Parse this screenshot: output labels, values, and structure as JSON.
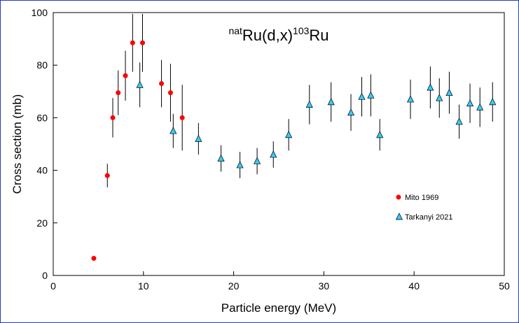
{
  "chart_data": {
    "type": "scatter",
    "title_parts": {
      "pre_sup": "nat",
      "main": "Ru(d,x)",
      "mid_sup": "103",
      "tail": "Ru"
    },
    "xlabel": "Particle energy (MeV)",
    "ylabel": "Cross section (mb)",
    "xlim": [
      0,
      50
    ],
    "ylim": [
      0,
      100
    ],
    "xticks": [
      0,
      10,
      20,
      30,
      40,
      50
    ],
    "yticks": [
      0,
      20,
      40,
      60,
      80,
      100
    ],
    "grid": false,
    "legend_position": "right-middle",
    "series": [
      {
        "name": "Mito 1969",
        "marker": "circle",
        "color": "#ff0000",
        "points": [
          {
            "x": 4.5,
            "y": 6.5,
            "err": 0
          },
          {
            "x": 6.0,
            "y": 38.0,
            "err": 4.5
          },
          {
            "x": 6.6,
            "y": 60.0,
            "err": 7.5
          },
          {
            "x": 7.2,
            "y": 69.5,
            "err": 8.5
          },
          {
            "x": 8.0,
            "y": 76.0,
            "err": 9.5
          },
          {
            "x": 8.8,
            "y": 88.5,
            "err": 11.0
          },
          {
            "x": 9.9,
            "y": 88.5,
            "err": 11.0
          },
          {
            "x": 12.0,
            "y": 73.0,
            "err": 9.0
          },
          {
            "x": 13.0,
            "y": 69.5,
            "err": 11.0
          },
          {
            "x": 14.3,
            "y": 60.0,
            "err": 12.5
          }
        ]
      },
      {
        "name": "Tarkanyi 2021",
        "marker": "triangle",
        "color": "#33ccff",
        "points": [
          {
            "x": 9.6,
            "y": 72.5,
            "err": 8.5
          },
          {
            "x": 13.3,
            "y": 55.0,
            "err": 6.5
          },
          {
            "x": 16.1,
            "y": 52.0,
            "err": 6.0
          },
          {
            "x": 18.6,
            "y": 44.5,
            "err": 5.0
          },
          {
            "x": 20.7,
            "y": 42.0,
            "err": 5.0
          },
          {
            "x": 22.6,
            "y": 43.5,
            "err": 5.0
          },
          {
            "x": 24.4,
            "y": 46.0,
            "err": 5.0
          },
          {
            "x": 26.1,
            "y": 53.5,
            "err": 6.0
          },
          {
            "x": 28.4,
            "y": 65.0,
            "err": 7.5
          },
          {
            "x": 30.8,
            "y": 66.0,
            "err": 7.5
          },
          {
            "x": 33.0,
            "y": 62.0,
            "err": 7.0
          },
          {
            "x": 34.2,
            "y": 68.0,
            "err": 7.5
          },
          {
            "x": 35.2,
            "y": 68.5,
            "err": 8.0
          },
          {
            "x": 36.2,
            "y": 53.5,
            "err": 6.0
          },
          {
            "x": 39.6,
            "y": 67.0,
            "err": 7.5
          },
          {
            "x": 41.8,
            "y": 71.5,
            "err": 8.0
          },
          {
            "x": 42.8,
            "y": 67.5,
            "err": 7.5
          },
          {
            "x": 43.9,
            "y": 69.5,
            "err": 8.0
          },
          {
            "x": 45.0,
            "y": 58.5,
            "err": 6.5
          },
          {
            "x": 46.2,
            "y": 65.5,
            "err": 7.5
          },
          {
            "x": 47.3,
            "y": 64.0,
            "err": 7.5
          },
          {
            "x": 48.7,
            "y": 66.0,
            "err": 7.5
          }
        ]
      }
    ]
  }
}
